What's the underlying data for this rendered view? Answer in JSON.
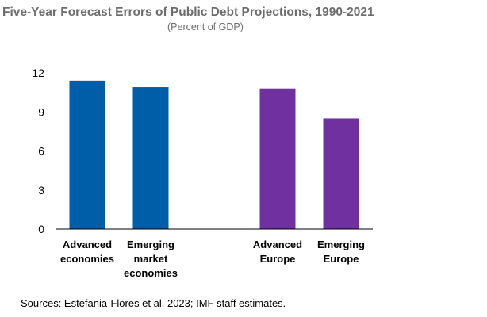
{
  "title": "Five-Year Forecast Errors of Public Debt Projections, 1990-2021",
  "subtitle": "(Percent of GDP)",
  "source": "Sources: Estefania-Flores et al. 2023; IMF staff estimates.",
  "colors": {
    "blue": "#005da8",
    "purple": "#7030a0",
    "axis": "#000000"
  },
  "chart_data": {
    "type": "bar",
    "title": "Five-Year Forecast Errors of Public Debt Projections, 1990-2021",
    "subtitle": "(Percent of GDP)",
    "xlabel": "",
    "ylabel": "",
    "ylim": [
      0,
      12
    ],
    "yticks": [
      0,
      3,
      6,
      9,
      12
    ],
    "grid": false,
    "legend": "none",
    "categories": [
      "Advanced economies",
      "Emerging market economies",
      "Advanced Europe",
      "Emerging Europe"
    ],
    "category_lines": [
      [
        "Advanced",
        "economies"
      ],
      [
        "Emerging",
        "market",
        "economies"
      ],
      [
        "Advanced",
        "Europe"
      ],
      [
        "Emerging",
        "Europe"
      ]
    ],
    "values": [
      11.4,
      10.9,
      10.8,
      8.5
    ],
    "bar_colors": [
      "#005da8",
      "#005da8",
      "#7030a0",
      "#7030a0"
    ]
  }
}
